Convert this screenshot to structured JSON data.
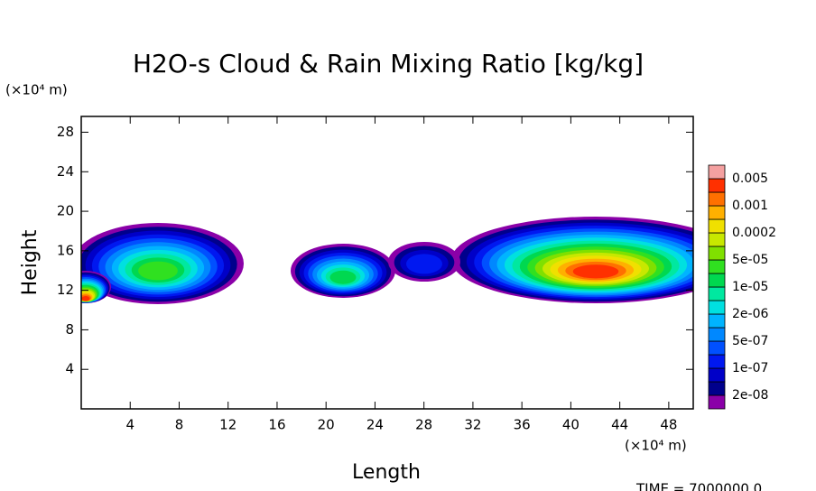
{
  "chart_data": {
    "type": "contour",
    "title": "H2O-s Cloud & Rain Mixing Ratio [kg/kg]",
    "x_label": "Length",
    "y_label": "Height",
    "x_unit": "(×10⁴ m)",
    "y_unit": "(×10⁴ m)",
    "footer": "TIME = 7000000.0",
    "xlim": [
      0,
      50
    ],
    "ylim": [
      0,
      29.6
    ],
    "xticks": [
      4,
      8,
      12,
      16,
      20,
      24,
      28,
      32,
      36,
      40,
      44,
      48
    ],
    "yticks": [
      4,
      8,
      12,
      16,
      20,
      24,
      28
    ],
    "levels": [
      {
        "value": 2e-08,
        "label": "2e-08"
      },
      {
        "value": 1e-07,
        "label": "1e-07"
      },
      {
        "value": 5e-07,
        "label": "5e-07"
      },
      {
        "value": 2e-06,
        "label": "2e-06"
      },
      {
        "value": 1e-05,
        "label": "1e-05"
      },
      {
        "value": 5e-05,
        "label": "5e-05"
      },
      0.0002,
      0.001,
      0.005
    ],
    "colors": [
      "#8a00a8",
      "#00008c",
      "#0000c8",
      "#0018f0",
      "#0050ff",
      "#0088ff",
      "#00b4ff",
      "#00e0e0",
      "#00e8a0",
      "#00d850",
      "#30e020",
      "#80e000",
      "#c8e800",
      "#f0e000",
      "#ffb000",
      "#ff7000",
      "#ff3000",
      "#e80000",
      "#f05050",
      "#f4a0a0"
    ]
  }
}
